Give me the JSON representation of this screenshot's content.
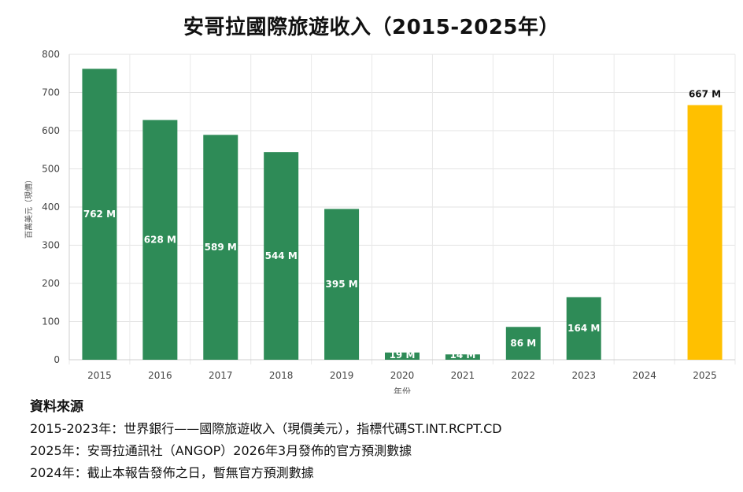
{
  "title": "安哥拉國際旅遊收入（2015-2025年）",
  "chart_data": {
    "type": "bar",
    "title": "安哥拉國際旅遊收入（2015-2025年）",
    "xlabel": "年份",
    "ylabel": "百萬美元（現價）",
    "ylim": [
      0,
      800
    ],
    "yticks": [
      0,
      100,
      200,
      300,
      400,
      500,
      600,
      700,
      800
    ],
    "categories": [
      "2015",
      "2016",
      "2017",
      "2018",
      "2019",
      "2020",
      "2021",
      "2022",
      "2023",
      "2024",
      "2025"
    ],
    "values": [
      762,
      628,
      589,
      544,
      395,
      19,
      14,
      86,
      164,
      null,
      667
    ],
    "data_labels": [
      "762 M",
      "628 M",
      "589 M",
      "544 M",
      "395 M",
      "19 M",
      "14 M",
      "86 M",
      "164 M",
      "",
      "667 M"
    ],
    "colors": {
      "actual": "#2e8b57",
      "forecast": "#ffc000"
    },
    "forecast_categories": [
      "2025"
    ],
    "grid": true,
    "legend": "none"
  },
  "source": {
    "heading": "資料來源",
    "lines": [
      "2015-2023年：世界銀行——國際旅遊收入（現價美元），指標代碼ST.INT.RCPT.CD",
      "2025年：安哥拉通訊社（ANGOP）2026年3月發佈的官方預測數據",
      "2024年：截止本報告發佈之日，暫無官方預測數據"
    ]
  }
}
